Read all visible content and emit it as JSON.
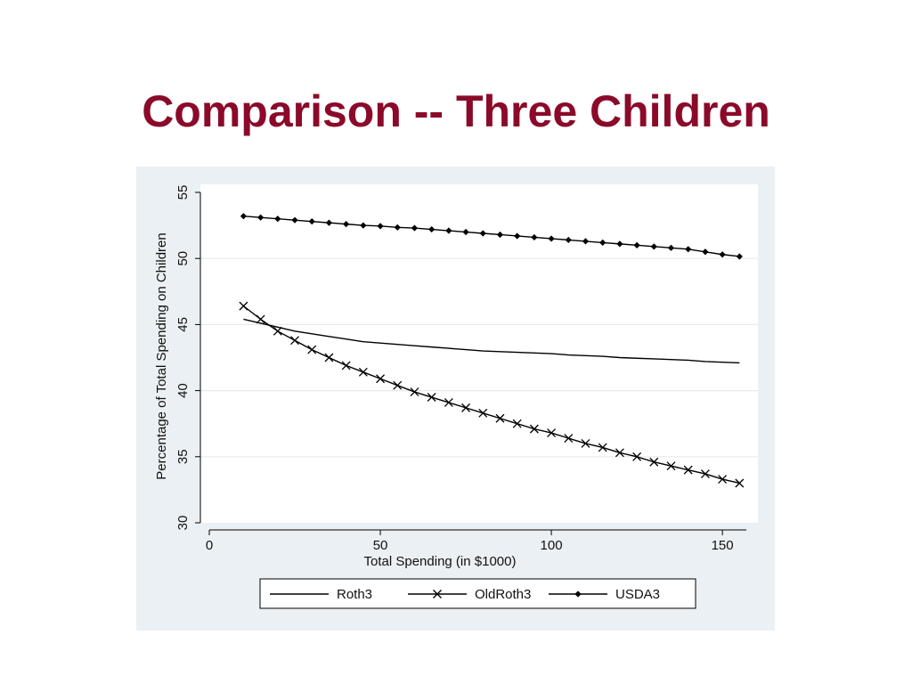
{
  "slide": {
    "title": "Comparison -- Three Children"
  },
  "chart_data": {
    "type": "line",
    "title": "",
    "xlabel": "Total Spending (in $1000)",
    "ylabel": "Percentage of Total Spending on Children",
    "xlim": [
      0,
      157
    ],
    "ylim": [
      30,
      55
    ],
    "xticks": [
      0,
      50,
      100,
      150
    ],
    "yticks": [
      30,
      35,
      40,
      45,
      50,
      55
    ],
    "grid": true,
    "legend_position": "bottom",
    "x": [
      10,
      15,
      20,
      25,
      30,
      35,
      40,
      45,
      50,
      55,
      60,
      65,
      70,
      75,
      80,
      85,
      90,
      95,
      100,
      105,
      110,
      115,
      120,
      125,
      130,
      135,
      140,
      145,
      150,
      155
    ],
    "series": [
      {
        "name": "Roth3",
        "marker": "none",
        "values": [
          45.4,
          45.1,
          44.8,
          44.5,
          44.3,
          44.1,
          43.9,
          43.7,
          43.6,
          43.5,
          43.4,
          43.3,
          43.2,
          43.1,
          43.0,
          42.95,
          42.9,
          42.85,
          42.8,
          42.7,
          42.65,
          42.6,
          42.5,
          42.45,
          42.4,
          42.35,
          42.3,
          42.2,
          42.15,
          42.1
        ]
      },
      {
        "name": "OldRoth3",
        "marker": "x",
        "values": [
          46.4,
          45.4,
          44.5,
          43.8,
          43.1,
          42.5,
          41.9,
          41.4,
          40.9,
          40.4,
          39.9,
          39.5,
          39.1,
          38.7,
          38.3,
          37.9,
          37.5,
          37.1,
          36.8,
          36.4,
          36.0,
          35.7,
          35.3,
          35.0,
          34.6,
          34.3,
          34.0,
          33.7,
          33.3,
          33.0
        ]
      },
      {
        "name": "USDA3",
        "marker": "diamond",
        "values": [
          53.2,
          53.1,
          53.0,
          52.9,
          52.8,
          52.7,
          52.6,
          52.5,
          52.45,
          52.35,
          52.3,
          52.2,
          52.1,
          52.0,
          51.9,
          51.8,
          51.7,
          51.6,
          51.5,
          51.4,
          51.3,
          51.2,
          51.1,
          51.0,
          50.9,
          50.8,
          50.7,
          50.5,
          50.3,
          50.15
        ]
      }
    ]
  },
  "style": {
    "title_color": "#8b0a2a",
    "panel_bg": "#eaf0f3",
    "plot_bg": "#ffffff",
    "line_color": "#000000"
  }
}
